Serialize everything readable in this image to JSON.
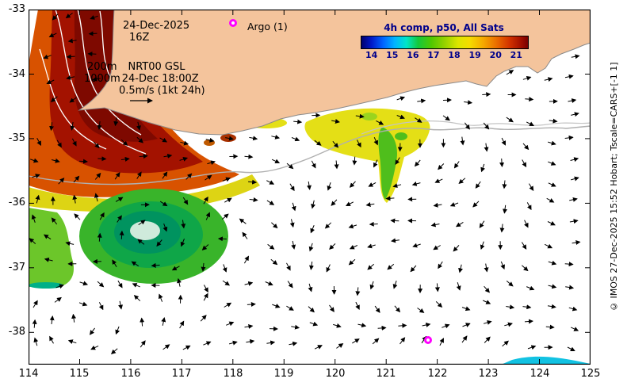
{
  "header": {
    "date": "24-Dec-2025",
    "time": "16Z",
    "depth": "200m",
    "model": "NRT00 GSL",
    "depth2": "1000m",
    "valid_time": "24-Dec 18:00Z",
    "vector_scale": "0.5m/s (1kt 24h)"
  },
  "argo": {
    "label": "Argo (1)"
  },
  "colorbar": {
    "title": "4h comp, p50, All Sats",
    "tick_labels": [
      "14",
      "15",
      "16",
      "17",
      "18",
      "19",
      "20",
      "21"
    ]
  },
  "axes": {
    "x_tick_labels": [
      "114",
      "115",
      "116",
      "117",
      "118",
      "119",
      "120",
      "121",
      "122",
      "123",
      "124",
      "125"
    ],
    "y_tick_labels": [
      "-33",
      "-34",
      "-35",
      "-36",
      "-37",
      "-38"
    ]
  },
  "credit": "© IMOS 27-Dec-2025 15:52 Hobart; Tscale=CARS+[-1 1]",
  "colors": {
    "land": "#f4c49c",
    "marker": "#ff00ff",
    "colorbar_text": "#00008b"
  },
  "chart_data": {
    "type": "heatmap",
    "title": "4h comp, p50, All Sats",
    "x_range": [
      114,
      125
    ],
    "y_range": [
      -38.5,
      -33
    ],
    "x_ticks": [
      114,
      115,
      116,
      117,
      118,
      119,
      120,
      121,
      122,
      123,
      124,
      125
    ],
    "y_ticks": [
      -33,
      -34,
      -35,
      -36,
      -37,
      -38
    ],
    "colorbar_ticks": [
      14,
      15,
      16,
      17,
      18,
      19,
      20,
      21
    ],
    "vector_reference": "0.5m/s (1kt 24h)"
  }
}
